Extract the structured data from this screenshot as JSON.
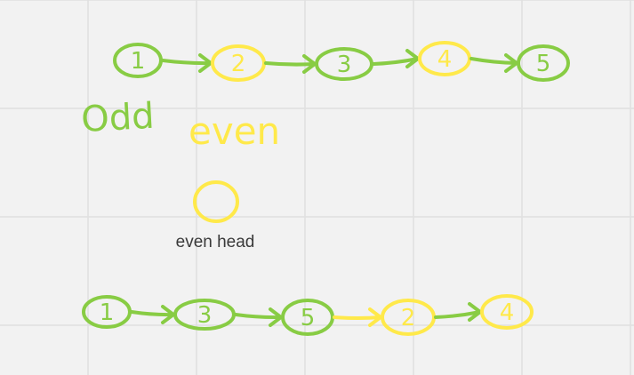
{
  "colors": {
    "background": "#f2f2f2",
    "grid_line": "#e0e0e0",
    "odd_green": "#88cc44",
    "even_yellow": "#ffe94a",
    "caption_text": "#3a3a3a"
  },
  "labels": {
    "odd": "Odd",
    "even": "even",
    "even_head": "even head"
  },
  "diagram": {
    "original_list": {
      "nodes": [
        {
          "value": "1",
          "group": "odd"
        },
        {
          "value": "2",
          "group": "even"
        },
        {
          "value": "3",
          "group": "odd"
        },
        {
          "value": "4",
          "group": "even"
        },
        {
          "value": "5",
          "group": "odd"
        }
      ]
    },
    "even_head_node": {
      "value": "",
      "group": "even"
    },
    "result_list": {
      "nodes": [
        {
          "value": "1",
          "group": "odd"
        },
        {
          "value": "3",
          "group": "odd"
        },
        {
          "value": "5",
          "group": "odd"
        },
        {
          "value": "2",
          "group": "even"
        },
        {
          "value": "4",
          "group": "even"
        }
      ]
    }
  }
}
